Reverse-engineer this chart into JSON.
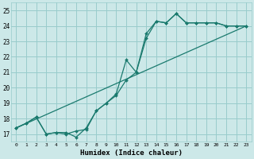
{
  "xlabel": "Humidex (Indice chaleur)",
  "ylabel": "",
  "bg_color": "#cce8e8",
  "grid_color": "#99cccc",
  "line_color": "#1a7a6e",
  "xlim": [
    -0.5,
    23.5
  ],
  "ylim": [
    16.5,
    25.5
  ],
  "xticks": [
    0,
    1,
    2,
    3,
    4,
    5,
    6,
    7,
    8,
    9,
    10,
    11,
    12,
    13,
    14,
    15,
    16,
    17,
    18,
    19,
    20,
    21,
    22,
    23
  ],
  "yticks": [
    17,
    18,
    19,
    20,
    21,
    22,
    23,
    24,
    25
  ],
  "line1_x": [
    0,
    1,
    2,
    3,
    4,
    5,
    6,
    7,
    8,
    9,
    10,
    11,
    12,
    13,
    14,
    15,
    16,
    17,
    18,
    19,
    20,
    21,
    22,
    23
  ],
  "line1_y": [
    17.4,
    17.7,
    18.1,
    17.0,
    17.1,
    17.0,
    17.2,
    17.3,
    18.5,
    19.0,
    19.5,
    20.5,
    21.0,
    23.2,
    24.3,
    24.2,
    24.8,
    24.2,
    24.2,
    24.2,
    24.2,
    24.0,
    24.0,
    24.0
  ],
  "line2_x": [
    0,
    1,
    2,
    3,
    4,
    5,
    6,
    7,
    8,
    9,
    10,
    11,
    12,
    13,
    14,
    15,
    16,
    17,
    18,
    19,
    20,
    21,
    22,
    23
  ],
  "line2_y": [
    17.4,
    17.7,
    18.1,
    17.0,
    17.1,
    17.1,
    16.8,
    17.4,
    18.5,
    19.0,
    19.6,
    21.8,
    21.0,
    23.5,
    24.3,
    24.2,
    24.8,
    24.2,
    24.2,
    24.2,
    24.2,
    24.0,
    24.0,
    24.0
  ],
  "line3_x": [
    0,
    23
  ],
  "line3_y": [
    17.4,
    24.0
  ]
}
